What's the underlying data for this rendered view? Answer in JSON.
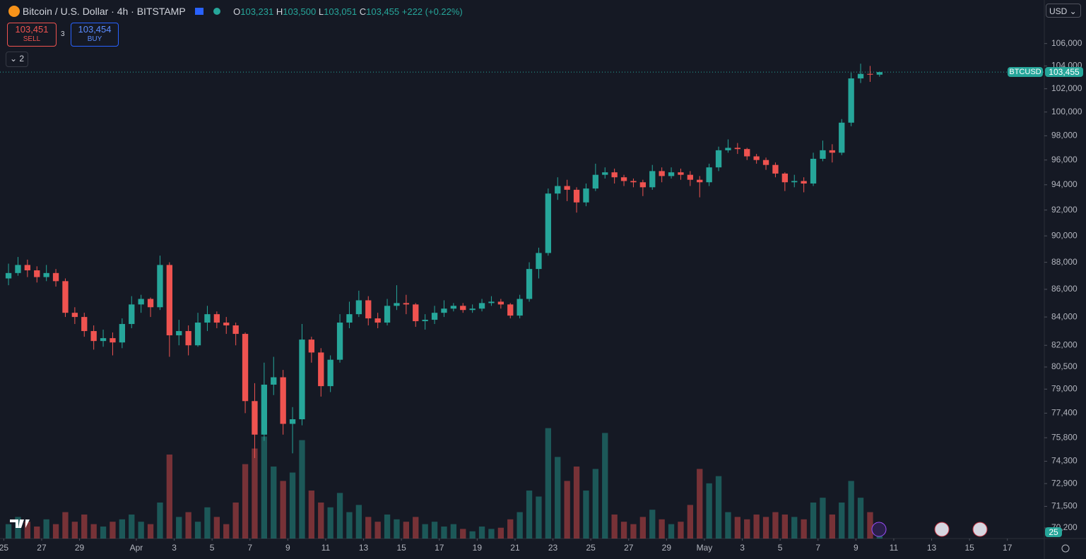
{
  "header": {
    "symbol": "Bitcoin / U.S. Dollar · 4h · BITSTAMP",
    "open_label": "O",
    "open": "103,231",
    "high_label": "H",
    "high": "103,500",
    "low_label": "L",
    "low": "103,051",
    "close_label": "C",
    "close": "103,455",
    "change": "+222 (+0.22%)"
  },
  "trade": {
    "sell_price": "103,451",
    "sell": "SELL",
    "spread": "3",
    "buy_price": "103,454",
    "buy": "BUY"
  },
  "indicators_count": "2",
  "currency": "USD",
  "price_tag": {
    "symbol": "BTCUSD",
    "price": "103,455"
  },
  "countdown": "25",
  "chart_data": {
    "type": "candlestick",
    "log_scale": true,
    "up_color": "#26a69a",
    "down_color": "#ef5350",
    "open": [
      86800,
      87200,
      87800,
      87400,
      86900,
      87200,
      86600,
      84300,
      84000,
      83000,
      82300,
      82500,
      82200,
      83500,
      84900,
      85300,
      84700,
      87800,
      82700,
      83000,
      82000,
      83600,
      84200,
      83600,
      83400,
      82800,
      78200,
      76000,
      79300,
      79800,
      76700,
      77000,
      82400,
      81500,
      79200,
      81000,
      83600,
      84200,
      85200,
      83900,
      83600,
      84800,
      85000,
      84900,
      83700,
      83800,
      84300,
      84600,
      84800,
      84500,
      84600,
      85000,
      85100,
      84900,
      84100,
      85300,
      87500,
      88700,
      93300,
      93900,
      93600,
      92600,
      93700,
      94800,
      95000,
      94600,
      94300,
      94200,
      93800,
      95100,
      94700,
      95000,
      94800,
      94400,
      94200,
      95400,
      96800,
      97000,
      96900,
      96300,
      96000,
      95600,
      94900,
      94200,
      94300,
      94100,
      96100,
      96800,
      96600,
      99100,
      102900,
      103300,
      103231
    ],
    "high": [
      87900,
      88400,
      88200,
      87700,
      87800,
      87500,
      86800,
      84700,
      84300,
      83400,
      83100,
      82900,
      83900,
      85500,
      85600,
      85400,
      88500,
      88000,
      83800,
      83400,
      84300,
      84800,
      84400,
      84000,
      83600,
      82900,
      79400,
      80800,
      81200,
      80300,
      77800,
      83500,
      82600,
      81800,
      81300,
      84200,
      85100,
      85900,
      85500,
      84300,
      85300,
      86300,
      85600,
      85000,
      84200,
      84800,
      85200,
      85000,
      85000,
      84900,
      85300,
      85500,
      85300,
      85000,
      85600,
      88000,
      89100,
      93700,
      94600,
      94400,
      93800,
      94100,
      95700,
      95400,
      95300,
      94800,
      94500,
      94400,
      95600,
      95400,
      95400,
      95300,
      95100,
      94700,
      95700,
      97100,
      97700,
      97400,
      97000,
      96500,
      96200,
      95800,
      95000,
      94800,
      94600,
      96600,
      97600,
      97300,
      99400,
      103400,
      104200,
      104000,
      103500
    ],
    "low": [
      86300,
      87000,
      86900,
      86500,
      86600,
      86200,
      84000,
      83500,
      82600,
      81700,
      81900,
      81300,
      81800,
      83200,
      84300,
      84000,
      84500,
      81200,
      82000,
      81300,
      81900,
      83000,
      83200,
      82800,
      82000,
      77400,
      74500,
      75600,
      78600,
      76000,
      74800,
      76600,
      80800,
      78500,
      78800,
      80800,
      83200,
      84000,
      83400,
      83200,
      83400,
      84500,
      84200,
      83300,
      83100,
      83500,
      84000,
      84400,
      84300,
      84300,
      84400,
      84800,
      84600,
      83900,
      83900,
      85100,
      86800,
      88500,
      92800,
      92700,
      91800,
      92300,
      93500,
      94500,
      94100,
      93900,
      93800,
      93100,
      93600,
      94200,
      94500,
      94400,
      93900,
      93000,
      93900,
      95100,
      96600,
      96500,
      96000,
      95700,
      95200,
      94600,
      93500,
      93800,
      93400,
      93900,
      95900,
      95800,
      96400,
      98800,
      102500,
      102600,
      103051
    ],
    "close": [
      87200,
      87800,
      87400,
      86900,
      87200,
      86600,
      84300,
      84000,
      83000,
      82300,
      82500,
      82200,
      83500,
      84900,
      85300,
      84700,
      87800,
      82700,
      83000,
      82000,
      83600,
      84200,
      83600,
      83400,
      82800,
      78200,
      76000,
      79300,
      79800,
      76700,
      77000,
      82400,
      81500,
      79200,
      81000,
      83600,
      84200,
      85200,
      83900,
      83600,
      84800,
      85000,
      84900,
      83700,
      83800,
      84300,
      84600,
      84800,
      84500,
      84600,
      85000,
      85100,
      84900,
      84100,
      85300,
      87500,
      88700,
      93300,
      93900,
      93600,
      92600,
      93700,
      94800,
      95000,
      94600,
      94300,
      94200,
      93800,
      95100,
      94700,
      95000,
      94800,
      94400,
      94200,
      95400,
      96800,
      97000,
      96900,
      96300,
      96000,
      95600,
      94900,
      94200,
      94300,
      94100,
      96100,
      96800,
      96600,
      99100,
      102900,
      103300,
      103233,
      103455
    ],
    "volume": [
      12,
      18,
      14,
      10,
      16,
      12,
      22,
      14,
      20,
      12,
      10,
      14,
      16,
      20,
      14,
      12,
      30,
      70,
      18,
      22,
      14,
      26,
      18,
      12,
      30,
      62,
      75,
      85,
      60,
      48,
      55,
      82,
      40,
      30,
      26,
      38,
      22,
      28,
      18,
      14,
      20,
      16,
      14,
      18,
      12,
      14,
      10,
      12,
      8,
      6,
      10,
      8,
      9,
      16,
      22,
      40,
      35,
      92,
      68,
      48,
      60,
      40,
      58,
      88,
      20,
      14,
      12,
      18,
      24,
      16,
      12,
      14,
      28,
      58,
      46,
      52,
      22,
      18,
      16,
      20,
      18,
      22,
      20,
      18,
      16,
      30,
      34,
      20,
      30,
      48,
      34,
      22,
      8
    ],
    "volume_lim": [
      0,
      100
    ],
    "ylim": [
      69570,
      110000
    ],
    "yticks": [
      {
        "value": 106000,
        "label": "106,000"
      },
      {
        "value": 104000,
        "label": "104,000"
      },
      {
        "value": 102000,
        "label": "102,000"
      },
      {
        "value": 100000,
        "label": "100,000"
      },
      {
        "value": 98000,
        "label": "98,000"
      },
      {
        "value": 96000,
        "label": "96,000"
      },
      {
        "value": 94000,
        "label": "94,000"
      },
      {
        "value": 92000,
        "label": "92,000"
      },
      {
        "value": 90000,
        "label": "90,000"
      },
      {
        "value": 88000,
        "label": "88,000"
      },
      {
        "value": 86000,
        "label": "86,000"
      },
      {
        "value": 84000,
        "label": "84,000"
      },
      {
        "value": 82000,
        "label": "82,000"
      },
      {
        "value": 80500,
        "label": "80,500"
      },
      {
        "value": 79000,
        "label": "79,000"
      },
      {
        "value": 77400,
        "label": "77,400"
      },
      {
        "value": 75800,
        "label": "75,800"
      },
      {
        "value": 74300,
        "label": "74,300"
      },
      {
        "value": 72900,
        "label": "72,900"
      },
      {
        "value": 71500,
        "label": "71,500"
      },
      {
        "value": 70200,
        "label": "70,200"
      }
    ],
    "xlim": [
      -0.4,
      109.9
    ],
    "xticks": [
      {
        "value": 0,
        "label": "25"
      },
      {
        "value": 4,
        "label": "27"
      },
      {
        "value": 8,
        "label": "29"
      },
      {
        "value": 14,
        "label": "Apr"
      },
      {
        "value": 18,
        "label": "3"
      },
      {
        "value": 22,
        "label": "5"
      },
      {
        "value": 26,
        "label": "7"
      },
      {
        "value": 30,
        "label": "9"
      },
      {
        "value": 34,
        "label": "11"
      },
      {
        "value": 38,
        "label": "13"
      },
      {
        "value": 42,
        "label": "15"
      },
      {
        "value": 46,
        "label": "17"
      },
      {
        "value": 50,
        "label": "19"
      },
      {
        "value": 54,
        "label": "21"
      },
      {
        "value": 58,
        "label": "23"
      },
      {
        "value": 62,
        "label": "25"
      },
      {
        "value": 66,
        "label": "27"
      },
      {
        "value": 70,
        "label": "29"
      },
      {
        "value": 74,
        "label": "May"
      },
      {
        "value": 78,
        "label": "3"
      },
      {
        "value": 82,
        "label": "5"
      },
      {
        "value": 86,
        "label": "7"
      },
      {
        "value": 90,
        "label": "9"
      },
      {
        "value": 94,
        "label": "11"
      },
      {
        "value": 98,
        "label": "13"
      },
      {
        "value": 102,
        "label": "15"
      },
      {
        "value": 106,
        "label": "17"
      }
    ]
  }
}
